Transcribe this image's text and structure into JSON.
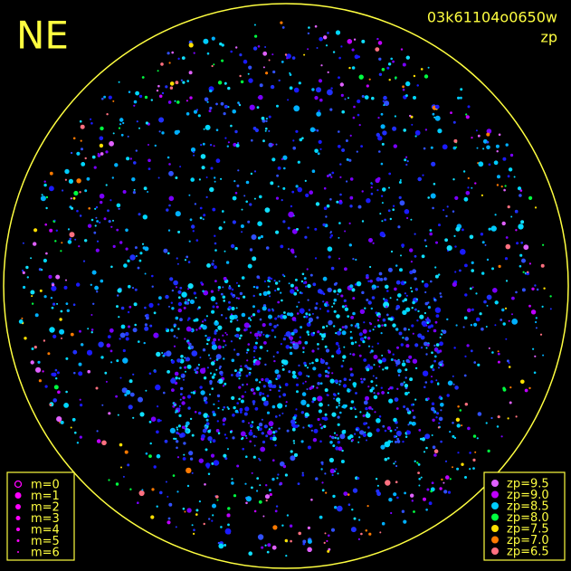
{
  "corner": "NE",
  "frame_id": "03k61104o0650w",
  "mode": "zp",
  "magnitude_legend": [
    "m=0",
    "m=1",
    "m=2",
    "m=3",
    "m=4",
    "m=5",
    "m=6"
  ],
  "zp_legend": [
    {
      "label": "zp=9.5",
      "color": "#e060ff"
    },
    {
      "label": "zp=9.0",
      "color": "#c000ff"
    },
    {
      "label": "zp=8.5",
      "color": "#00ccff"
    },
    {
      "label": "zp=8.0",
      "color": "#00ff40"
    },
    {
      "label": "zp=7.5",
      "color": "#ffe000"
    },
    {
      "label": "zp=7.0",
      "color": "#ff7a00"
    },
    {
      "label": "zp=6.5",
      "color": "#ff7080"
    }
  ]
}
